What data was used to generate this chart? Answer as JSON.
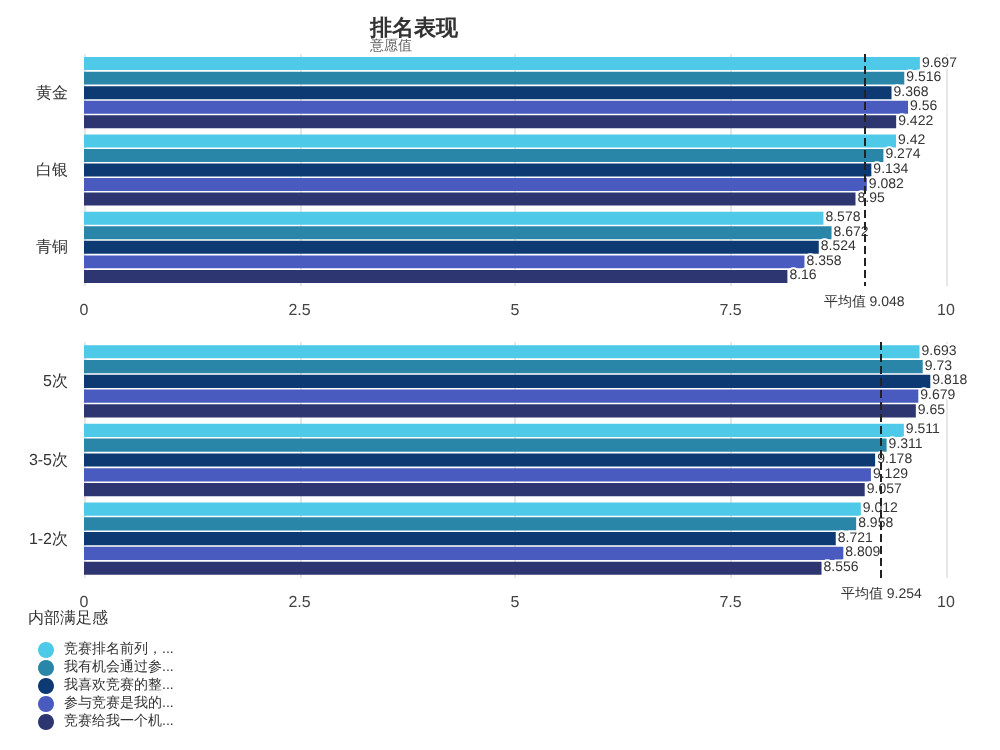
{
  "chart_data": [
    {
      "type": "bar",
      "orientation": "horizontal",
      "title": "排名表现",
      "subtitle": "意愿值",
      "categories": [
        "黄金",
        "白银",
        "青铜"
      ],
      "series": [
        {
          "color": "#4ec9e8",
          "values": [
            9.697,
            9.42,
            8.578
          ]
        },
        {
          "color": "#2a86a8",
          "values": [
            9.516,
            9.274,
            8.672
          ]
        },
        {
          "color": "#0d3a73",
          "values": [
            9.368,
            9.134,
            8.524
          ]
        },
        {
          "color": "#4a5bbf",
          "values": [
            9.56,
            9.082,
            8.358
          ]
        },
        {
          "color": "#2d3670",
          "values": [
            9.422,
            8.95,
            8.16
          ]
        }
      ],
      "xlim": [
        0,
        10
      ],
      "xticks": [
        0,
        2.5,
        5,
        7.5,
        10
      ],
      "grid": "x",
      "data_labels": true,
      "legend": false,
      "ref_lines": [
        {
          "axis": "x",
          "value": 9.048,
          "label": "平均值 9.048",
          "color": "#222222",
          "line_style": "dashed"
        }
      ]
    },
    {
      "type": "bar",
      "orientation": "horizontal",
      "legend_title": "内部满足感",
      "categories": [
        "5次",
        "3-5次",
        "1-2次"
      ],
      "series": [
        {
          "name": "竞赛排名前列，...",
          "color": "#4ec9e8",
          "values": [
            9.693,
            9.511,
            9.012
          ]
        },
        {
          "name": "我有机会通过参...",
          "color": "#2a86a8",
          "values": [
            9.73,
            9.311,
            8.958
          ]
        },
        {
          "name": "我喜欢竞赛的整...",
          "color": "#0d3a73",
          "values": [
            9.818,
            9.178,
            8.721
          ]
        },
        {
          "name": "参与竞赛是我的...",
          "color": "#4a5bbf",
          "values": [
            9.679,
            9.129,
            8.809
          ]
        },
        {
          "name": "竞赛给我一个机...",
          "color": "#2d3670",
          "values": [
            9.65,
            9.057,
            8.556
          ]
        }
      ],
      "xlim": [
        0,
        10
      ],
      "xticks": [
        0,
        2.5,
        5,
        7.5,
        10
      ],
      "grid": "x",
      "data_labels": true,
      "legend": "bottom left",
      "ref_lines": [
        {
          "axis": "x",
          "value": 9.254,
          "label": "平均值 9.254",
          "color": "#222222",
          "line_style": "dashed"
        }
      ]
    }
  ]
}
